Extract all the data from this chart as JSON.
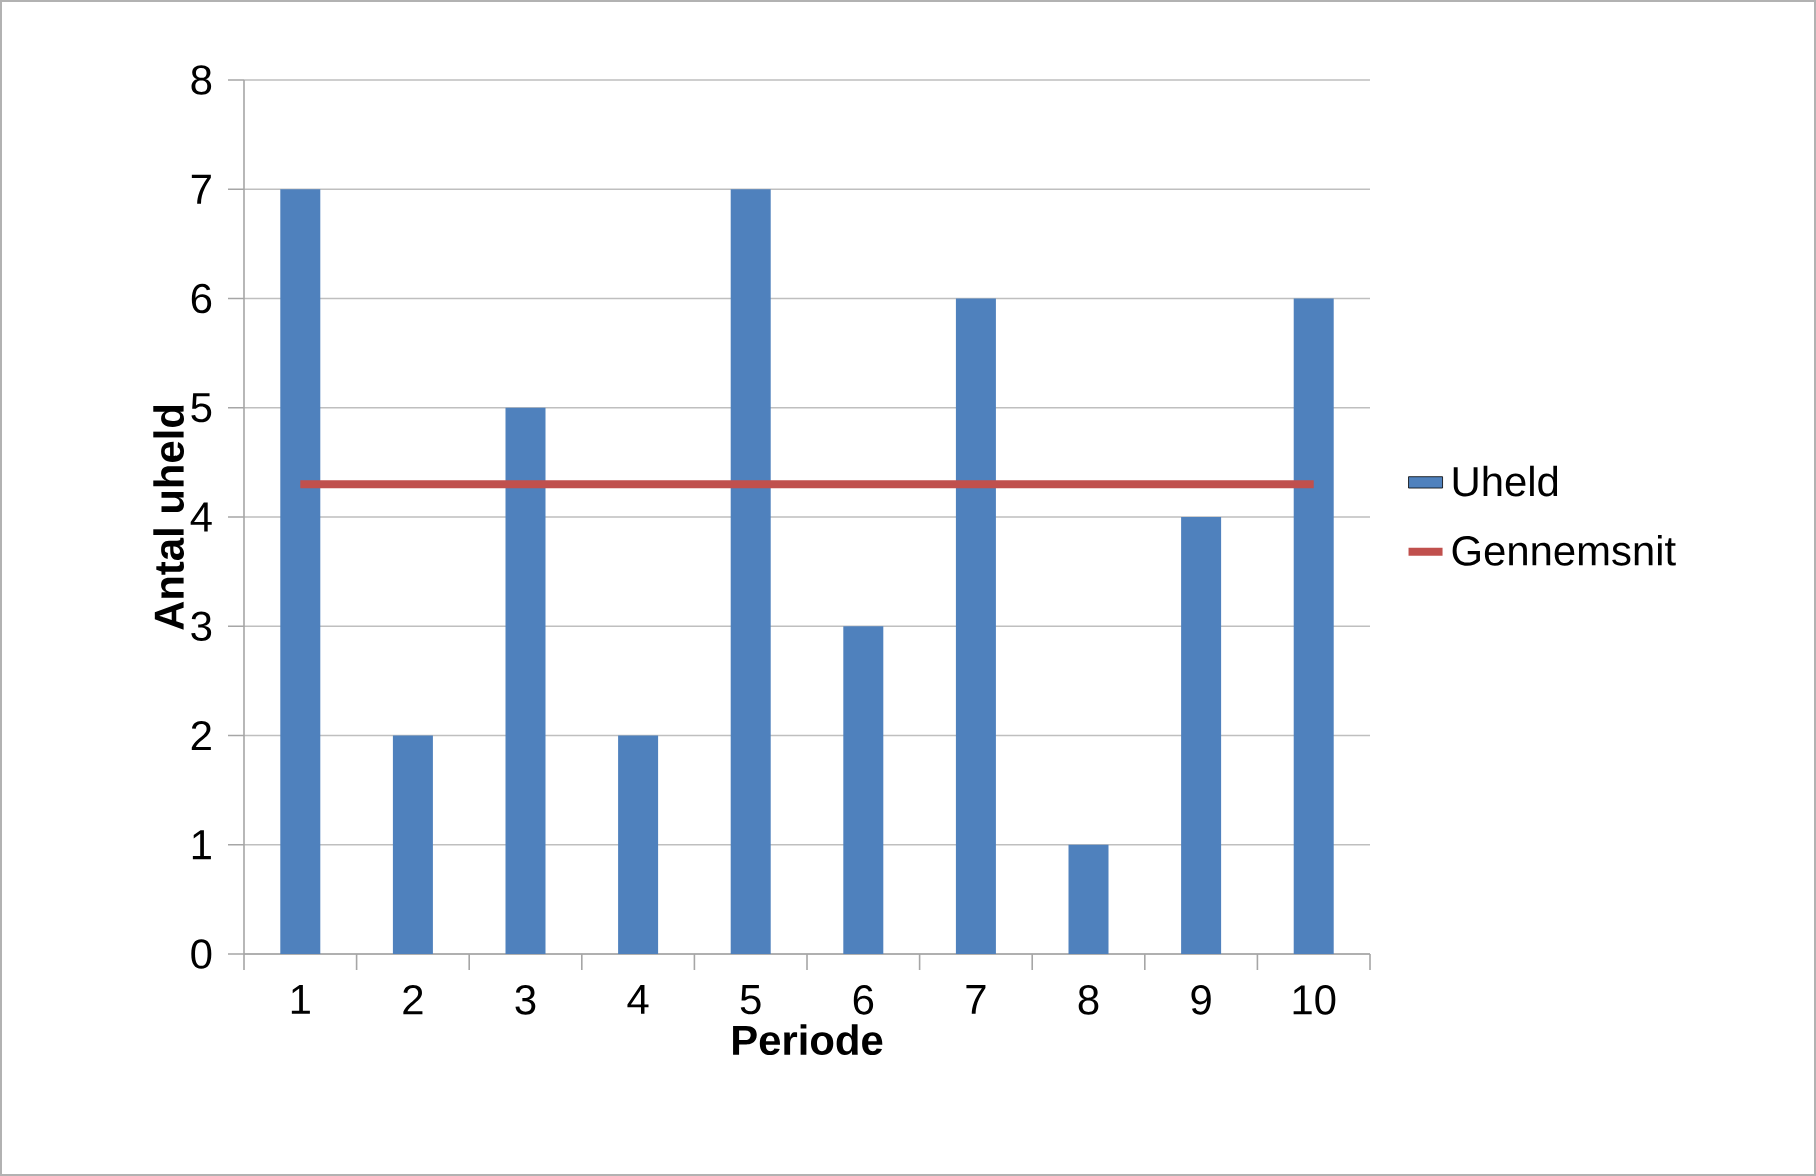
{
  "chart_data": {
    "type": "bar",
    "xlabel": "Periode",
    "ylabel": "Antal uheld",
    "categories": [
      "1",
      "2",
      "3",
      "4",
      "5",
      "6",
      "7",
      "8",
      "9",
      "10"
    ],
    "series": [
      {
        "name": "Uheld",
        "color": "#4f81bd",
        "values": [
          7,
          2,
          5,
          2,
          7,
          3,
          6,
          1,
          4,
          6
        ]
      },
      {
        "name": "Gennemsnit",
        "type": "line",
        "color": "#c0504d",
        "values": [
          4.3,
          4.3,
          4.3,
          4.3,
          4.3,
          4.3,
          4.3,
          4.3,
          4.3,
          4.3
        ]
      }
    ],
    "ylim": [
      0,
      8
    ],
    "yticks": [
      0,
      1,
      2,
      3,
      4,
      5,
      6,
      7,
      8
    ],
    "grid": "y",
    "legend": "right"
  }
}
